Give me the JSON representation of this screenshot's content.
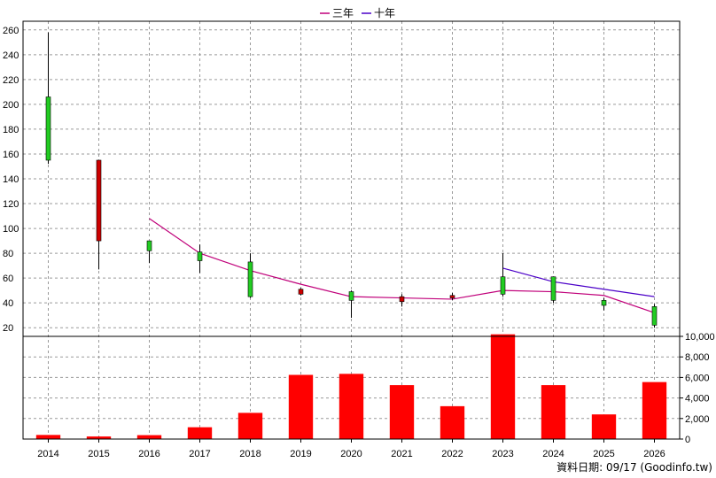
{
  "legend": [
    {
      "label": "三年",
      "color": "#c0007a"
    },
    {
      "label": "十年",
      "color": "#4b00c8"
    }
  ],
  "footer": "資料日期: 09/17  (Goodinfo.tw)",
  "chart_data": [
    {
      "type": "candlestick",
      "categories": [
        "2014",
        "2015",
        "2016",
        "2017",
        "2018",
        "2019",
        "2020",
        "2021",
        "2022",
        "2023",
        "2024",
        "2025",
        "2026"
      ],
      "yticks": [
        20,
        40,
        60,
        80,
        100,
        120,
        140,
        160,
        180,
        200,
        220,
        240,
        260
      ],
      "ylim": [
        13,
        267
      ],
      "grid": true,
      "up_color": "#22cc22",
      "down_color": "#cc0000",
      "candles": [
        {
          "x": "2014",
          "open": 155,
          "close": 206,
          "high": 258,
          "low": 152
        },
        {
          "x": "2015",
          "open": 155,
          "close": 90,
          "high": 155,
          "low": 67
        },
        {
          "x": "2016",
          "open": 82,
          "close": 90,
          "high": 90,
          "low": 72
        },
        {
          "x": "2017",
          "open": 74,
          "close": 81,
          "high": 87,
          "low": 64
        },
        {
          "x": "2018",
          "open": 45,
          "close": 73,
          "high": 80,
          "low": 44
        },
        {
          "x": "2019",
          "open": 51,
          "close": 47,
          "high": 52,
          "low": 46
        },
        {
          "x": "2020",
          "open": 42,
          "close": 49,
          "high": 50,
          "low": 28
        },
        {
          "x": "2021",
          "open": 45,
          "close": 41,
          "high": 47,
          "low": 37
        },
        {
          "x": "2022",
          "open": 46,
          "close": 44,
          "high": 48,
          "low": 42
        },
        {
          "x": "2023",
          "open": 47,
          "close": 61,
          "high": 80,
          "low": 45
        },
        {
          "x": "2024",
          "open": 42,
          "close": 61,
          "high": 61,
          "low": 40
        },
        {
          "x": "2025",
          "open": 38,
          "close": 42,
          "high": 44,
          "low": 34
        },
        {
          "x": "2026",
          "open": 22,
          "close": 37,
          "high": 39,
          "low": 20
        }
      ],
      "series": [
        {
          "name": "三年",
          "color": "#c0007a",
          "x": [
            "2016",
            "2017",
            "2018",
            "2019",
            "2020",
            "2021",
            "2022",
            "2023",
            "2024",
            "2025",
            "2026"
          ],
          "values": [
            108,
            80,
            66,
            55,
            45,
            44,
            43,
            50,
            49,
            46,
            32
          ]
        },
        {
          "name": "十年",
          "color": "#4b00c8",
          "x": [
            "2023",
            "2024",
            "2025",
            "2026"
          ],
          "values": [
            68,
            57,
            51,
            45
          ]
        }
      ]
    },
    {
      "type": "bar",
      "categories": [
        "2014",
        "2015",
        "2016",
        "2017",
        "2018",
        "2019",
        "2020",
        "2021",
        "2022",
        "2023",
        "2024",
        "2025",
        "2026"
      ],
      "values": [
        400,
        250,
        380,
        1150,
        2550,
        6250,
        6350,
        5250,
        3200,
        10200,
        5250,
        2400,
        5550
      ],
      "yticks": [
        0,
        2000,
        4000,
        6000,
        8000,
        10000
      ],
      "ytick_labels": [
        "0",
        "2,000",
        "4,000",
        "6,000",
        "8,000",
        "10,000"
      ],
      "ylim": [
        0,
        10000
      ],
      "bar_color": "#ff0000",
      "grid": true
    }
  ]
}
